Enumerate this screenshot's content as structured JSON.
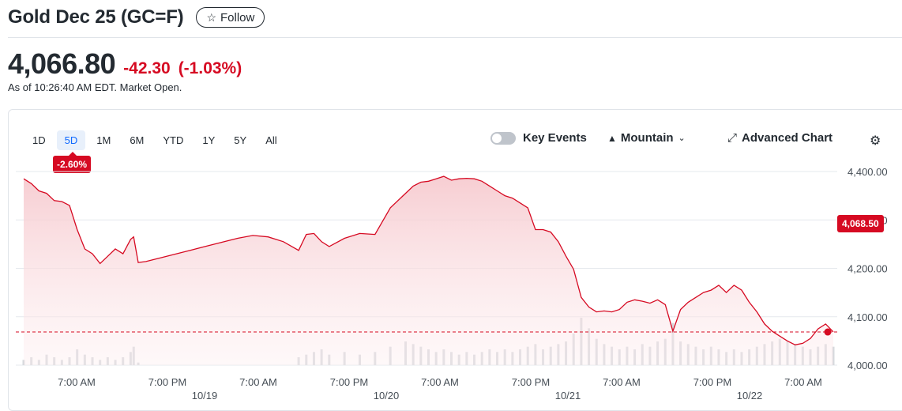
{
  "header": {
    "title": "Gold Dec 25 (GC=F)",
    "follow_label": "Follow",
    "price": "4,066.80",
    "change": "-42.30",
    "change_pct": "(-1.03%)",
    "as_of": "As of 10:26:40 AM EDT. Market Open."
  },
  "toolbar": {
    "ranges": [
      "1D",
      "5D",
      "1M",
      "6M",
      "YTD",
      "1Y",
      "5Y",
      "All"
    ],
    "active_range": "5D",
    "period_change_badge": "-2.60%",
    "key_events_label": "Key Events",
    "chart_type_label": "Mountain",
    "advanced_chart_label": "Advanced Chart"
  },
  "colors": {
    "down": "#d60a22",
    "area_top": "#f6c8cd",
    "grid": "#e6e9ed",
    "volume": "#d5d8dc",
    "accent": "#0f69ff"
  },
  "chart_data": {
    "type": "area",
    "ylim": [
      4000,
      4400
    ],
    "y_ticks": [
      4400,
      4300,
      4200,
      4100,
      4000
    ],
    "y_tick_labels": [
      "4,400.00",
      "4,300.00",
      "4,200.00",
      "4,100.00",
      "4,000.00"
    ],
    "x_tick_labels": [
      "7:00 AM",
      "7:00 PM",
      "7:00 AM",
      "7:00 PM",
      "7:00 AM",
      "7:00 PM",
      "7:00 AM",
      "7:00 PM",
      "7:00 AM"
    ],
    "date_labels": [
      "10/19",
      "10/20",
      "10/21",
      "10/22"
    ],
    "current_price_label": "4,068.50",
    "current_price": 4068.5,
    "x": [
      0,
      0.5,
      1,
      1.5,
      2,
      2.5,
      3,
      3.5,
      4,
      4.5,
      5,
      5.5,
      6,
      6.5,
      7,
      7.2,
      7.5,
      8,
      9,
      10,
      11,
      12,
      13,
      14,
      15,
      16,
      17,
      18,
      18.5,
      19,
      19.5,
      20,
      21,
      22,
      23,
      24,
      25,
      25.5,
      26,
      26.5,
      27,
      27.5,
      28,
      28.5,
      29,
      29.5,
      30,
      30.5,
      31,
      31.5,
      32,
      32.5,
      33,
      33.5,
      34,
      34.5,
      35,
      35.5,
      36,
      36.5,
      37,
      37.5,
      38,
      38.5,
      39,
      39.5,
      40,
      40.5,
      41,
      41.5,
      42,
      42.5,
      43,
      43.5,
      44,
      44.5,
      45,
      45.5,
      46,
      46.5,
      47,
      47.5,
      48,
      48.5,
      49,
      49.5,
      50,
      50.5,
      51,
      51.5,
      52,
      52.5,
      53
    ],
    "values": [
      4385,
      4375,
      4360,
      4355,
      4340,
      4338,
      4330,
      4280,
      4240,
      4230,
      4210,
      4225,
      4240,
      4230,
      4260,
      4265,
      4212,
      4214,
      4222,
      4230,
      4238,
      4246,
      4254,
      4262,
      4268,
      4265,
      4255,
      4237,
      4270,
      4272,
      4255,
      4245,
      4262,
      4272,
      4270,
      4325,
      4355,
      4370,
      4378,
      4380,
      4385,
      4390,
      4382,
      4385,
      4386,
      4385,
      4380,
      4370,
      4360,
      4350,
      4345,
      4335,
      4325,
      4280,
      4280,
      4275,
      4255,
      4225,
      4198,
      4140,
      4120,
      4110,
      4112,
      4110,
      4115,
      4130,
      4135,
      4132,
      4128,
      4135,
      4125,
      4070,
      4115,
      4130,
      4140,
      4150,
      4155,
      4165,
      4150,
      4165,
      4155,
      4130,
      4110,
      4085,
      4070,
      4060,
      4050,
      4042,
      4045,
      4055,
      4075,
      4085,
      4068.5
    ],
    "volume": [
      2,
      3,
      2,
      4,
      3,
      2,
      3,
      6,
      4,
      3,
      2,
      3,
      2,
      3,
      5,
      7,
      1,
      0,
      0,
      0,
      0,
      0,
      0,
      0,
      0,
      0,
      0,
      3,
      4,
      5,
      6,
      4,
      5,
      4,
      5,
      7,
      9,
      8,
      7,
      6,
      5,
      6,
      5,
      4,
      5,
      4,
      5,
      6,
      5,
      6,
      5,
      6,
      7,
      8,
      6,
      7,
      8,
      9,
      12,
      18,
      14,
      10,
      8,
      7,
      6,
      7,
      6,
      8,
      7,
      9,
      10,
      16,
      9,
      8,
      7,
      6,
      7,
      6,
      5,
      6,
      5,
      6,
      7,
      8,
      9,
      10,
      9,
      8,
      7,
      6,
      7,
      8,
      7
    ],
    "grid": true
  }
}
